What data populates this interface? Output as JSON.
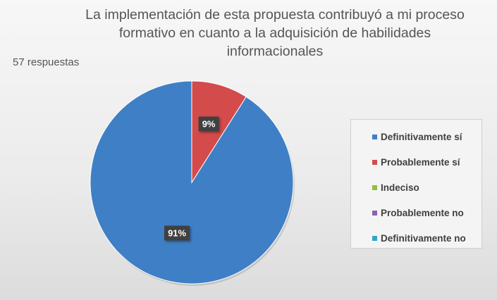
{
  "chart_data": {
    "type": "pie",
    "title": "La implementación de esta propuesta contribuyó a mi proceso formativo en cuanto a la adquisición de habilidades informacionales",
    "subtitle": "57 respuestas",
    "categories": [
      "Definitivamente sí",
      "Probablemente sí",
      "Indeciso",
      "Probablemente no",
      "Definitivamente no"
    ],
    "values": [
      91,
      9,
      0,
      0,
      0
    ],
    "data_labels": [
      "91%",
      "9%",
      "",
      "",
      ""
    ],
    "colors": [
      "#3f7fc6",
      "#d34b4b",
      "#8fbf3f",
      "#8a62b0",
      "#2ea6c8"
    ],
    "legend_position": "right",
    "start_angle": "12 o'clock",
    "direction": "counterclockwise"
  }
}
